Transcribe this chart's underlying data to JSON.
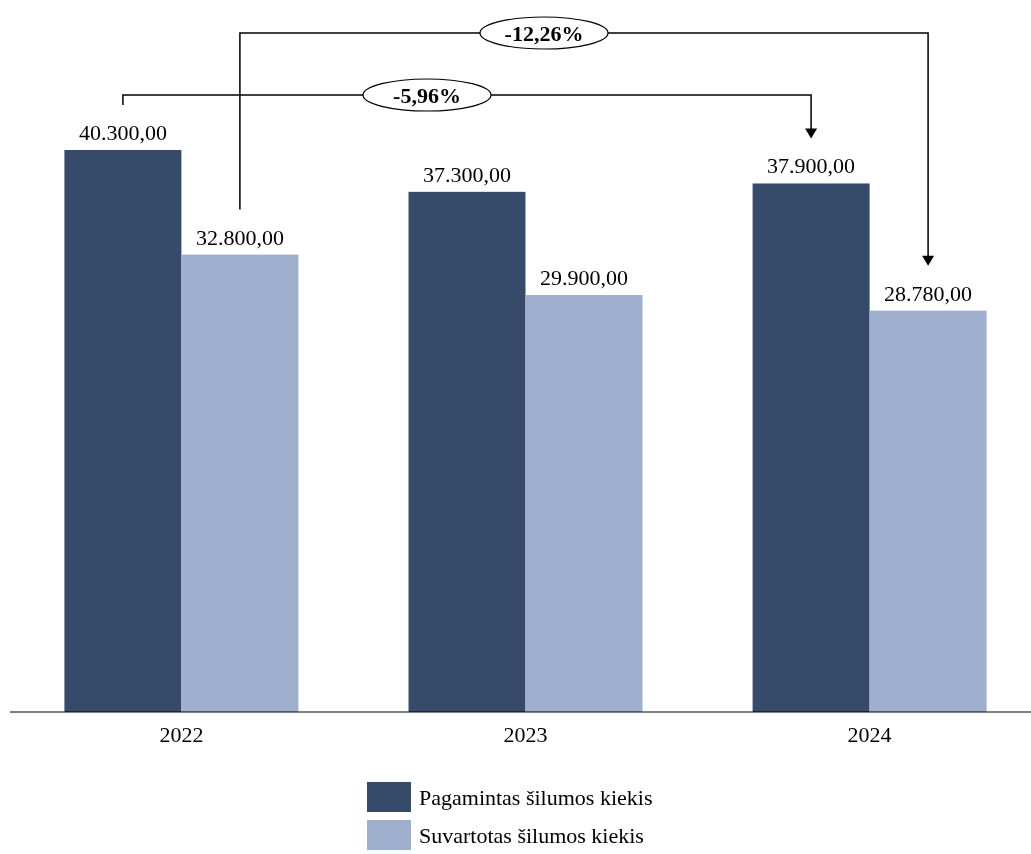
{
  "chart_data": {
    "type": "bar",
    "categories": [
      "2022",
      "2023",
      "2024"
    ],
    "series": [
      {
        "name": "Pagamintas šilumos kiekis",
        "color": "#364a6a",
        "values": [
          40300,
          37300,
          37900
        ],
        "value_labels": [
          "40.300,00",
          "37.300,00",
          "37.900,00"
        ]
      },
      {
        "name": "Suvartotas šilumos kiekis",
        "color": "#9eb0cd",
        "values": [
          32800,
          29900,
          28780
        ],
        "value_labels": [
          "32.800,00",
          "29.900,00",
          "28.780,00"
        ]
      }
    ],
    "annotations": [
      "-5,96%",
      "-12,26%"
    ],
    "legend": "bottom"
  }
}
